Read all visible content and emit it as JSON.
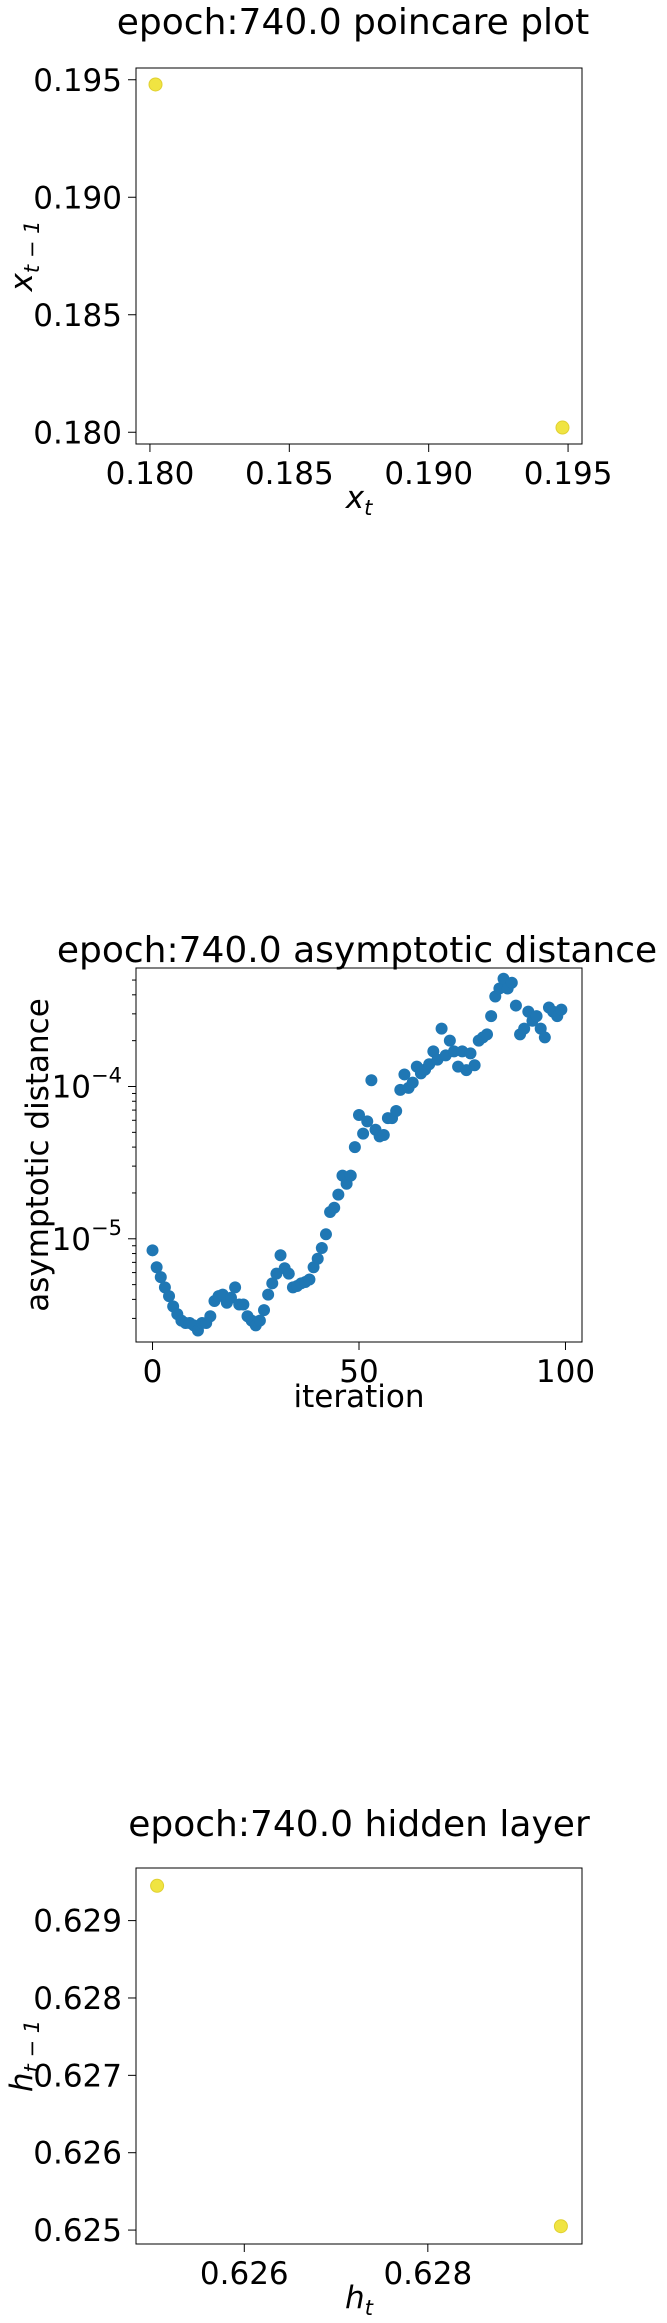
{
  "chart_data": [
    {
      "type": "scatter",
      "title": "epoch:740.0 poincare plot",
      "xlabel": "x",
      "xlabel_sub": "t",
      "ylabel": "x",
      "ylabel_sub": "t − 1",
      "xlim": [
        0.1795,
        0.1955
      ],
      "ylim": [
        0.1795,
        0.1955
      ],
      "xticks": [
        0.18,
        0.185,
        0.19,
        0.195
      ],
      "xtick_labels": [
        "0.180",
        "0.185",
        "0.190",
        "0.195"
      ],
      "yticks": [
        0.18,
        0.185,
        0.19,
        0.195
      ],
      "ytick_labels": [
        "0.180",
        "0.185",
        "0.190",
        "0.195"
      ],
      "grid": false,
      "marker_color": "#f0e442",
      "points": [
        {
          "x": 0.1802,
          "y": 0.1948
        },
        {
          "x": 0.1948,
          "y": 0.1802
        }
      ]
    },
    {
      "type": "scatter",
      "title": "epoch:740.0 asymptotic distance",
      "xlabel": "iteration",
      "ylabel": "asymptotic distance",
      "xlim": [
        -4,
        104
      ],
      "ylim": [
        2.1e-06,
        0.0006
      ],
      "yscale": "log",
      "xticks": [
        0,
        50,
        100
      ],
      "xtick_labels": [
        "0",
        "50",
        "100"
      ],
      "yticks_major": [
        1e-05,
        0.0001
      ],
      "ytick_labels": [
        {
          "base": "10",
          "exp": "−5"
        },
        {
          "base": "10",
          "exp": "−4"
        }
      ],
      "grid": false,
      "marker_color": "#1f77b4",
      "x": [
        0,
        1,
        2,
        3,
        4,
        5,
        6,
        7,
        8,
        9,
        10,
        11,
        12,
        13,
        14,
        15,
        16,
        17,
        18,
        19,
        20,
        21,
        22,
        23,
        24,
        25,
        26,
        27,
        28,
        29,
        30,
        31,
        32,
        33,
        34,
        35,
        36,
        37,
        38,
        39,
        40,
        41,
        42,
        43,
        44,
        45,
        46,
        47,
        48,
        49,
        50,
        51,
        52,
        53,
        54,
        55,
        56,
        57,
        58,
        59,
        60,
        61,
        62,
        63,
        64,
        65,
        66,
        67,
        68,
        69,
        70,
        71,
        72,
        73,
        74,
        75,
        76,
        77,
        78,
        79,
        80,
        81,
        82,
        83,
        84,
        85,
        86,
        87,
        88,
        89,
        90,
        91,
        92,
        93,
        94,
        95,
        96,
        97,
        98,
        99
      ],
      "y": [
        8.4e-06,
        6.5e-06,
        5.6e-06,
        4.8e-06,
        4.2e-06,
        3.6e-06,
        3.2e-06,
        2.9e-06,
        2.8e-06,
        2.8e-06,
        2.7e-06,
        2.5e-06,
        2.8e-06,
        2.8e-06,
        3.1e-06,
        3.9e-06,
        4.2e-06,
        4.3e-06,
        3.8e-06,
        4.1e-06,
        4.8e-06,
        3.7e-06,
        3.7e-06,
        3.1e-06,
        2.9e-06,
        2.7e-06,
        2.9e-06,
        3.4e-06,
        4.3e-06,
        5.1e-06,
        5.9e-06,
        7.8e-06,
        6.4e-06,
        5.9e-06,
        4.8e-06,
        4.9e-06,
        5.1e-06,
        5.2e-06,
        5.4e-06,
        6.5e-06,
        7.4e-06,
        8.7e-06,
        1.07e-05,
        1.5e-05,
        1.6e-05,
        1.95e-05,
        2.6e-05,
        2.3e-05,
        2.6e-05,
        4e-05,
        6.5e-05,
        4.9e-05,
        5.9e-05,
        0.00011,
        5.2e-05,
        4.7e-05,
        4.8e-05,
        6.2e-05,
        6.2e-05,
        6.9e-05,
        9.5e-05,
        0.00012,
        9.8e-05,
        0.000106,
        0.000135,
        0.000122,
        0.000129,
        0.00014,
        0.00017,
        0.00015,
        0.00024,
        0.00016,
        0.0002,
        0.00017,
        0.000135,
        0.00017,
        0.000128,
        0.000165,
        0.000138,
        0.0002,
        0.00021,
        0.00022,
        0.00029,
        0.00039,
        0.00044,
        0.00051,
        0.00044,
        0.00048,
        0.00034,
        0.00022,
        0.00024,
        0.00031,
        0.00027,
        0.00029,
        0.00024,
        0.00021,
        0.00033,
        0.00031,
        0.00029,
        0.00032
      ]
    },
    {
      "type": "scatter",
      "title": "epoch:740.0 hidden layer",
      "xlabel": "h",
      "xlabel_sub": "t",
      "ylabel": "h",
      "ylabel_sub": "t − 1",
      "xlim": [
        0.62482,
        0.62968
      ],
      "ylim": [
        0.62482,
        0.62968
      ],
      "xticks": [
        0.626,
        0.628
      ],
      "xtick_labels": [
        "0.626",
        "0.628"
      ],
      "yticks": [
        0.625,
        0.626,
        0.627,
        0.628,
        0.629
      ],
      "ytick_labels": [
        "0.625",
        "0.626",
        "0.627",
        "0.628",
        "0.629"
      ],
      "grid": false,
      "marker_color": "#f0e442",
      "points": [
        {
          "x": 0.62505,
          "y": 0.62945
        },
        {
          "x": 0.62945,
          "y": 0.62505
        }
      ]
    }
  ]
}
